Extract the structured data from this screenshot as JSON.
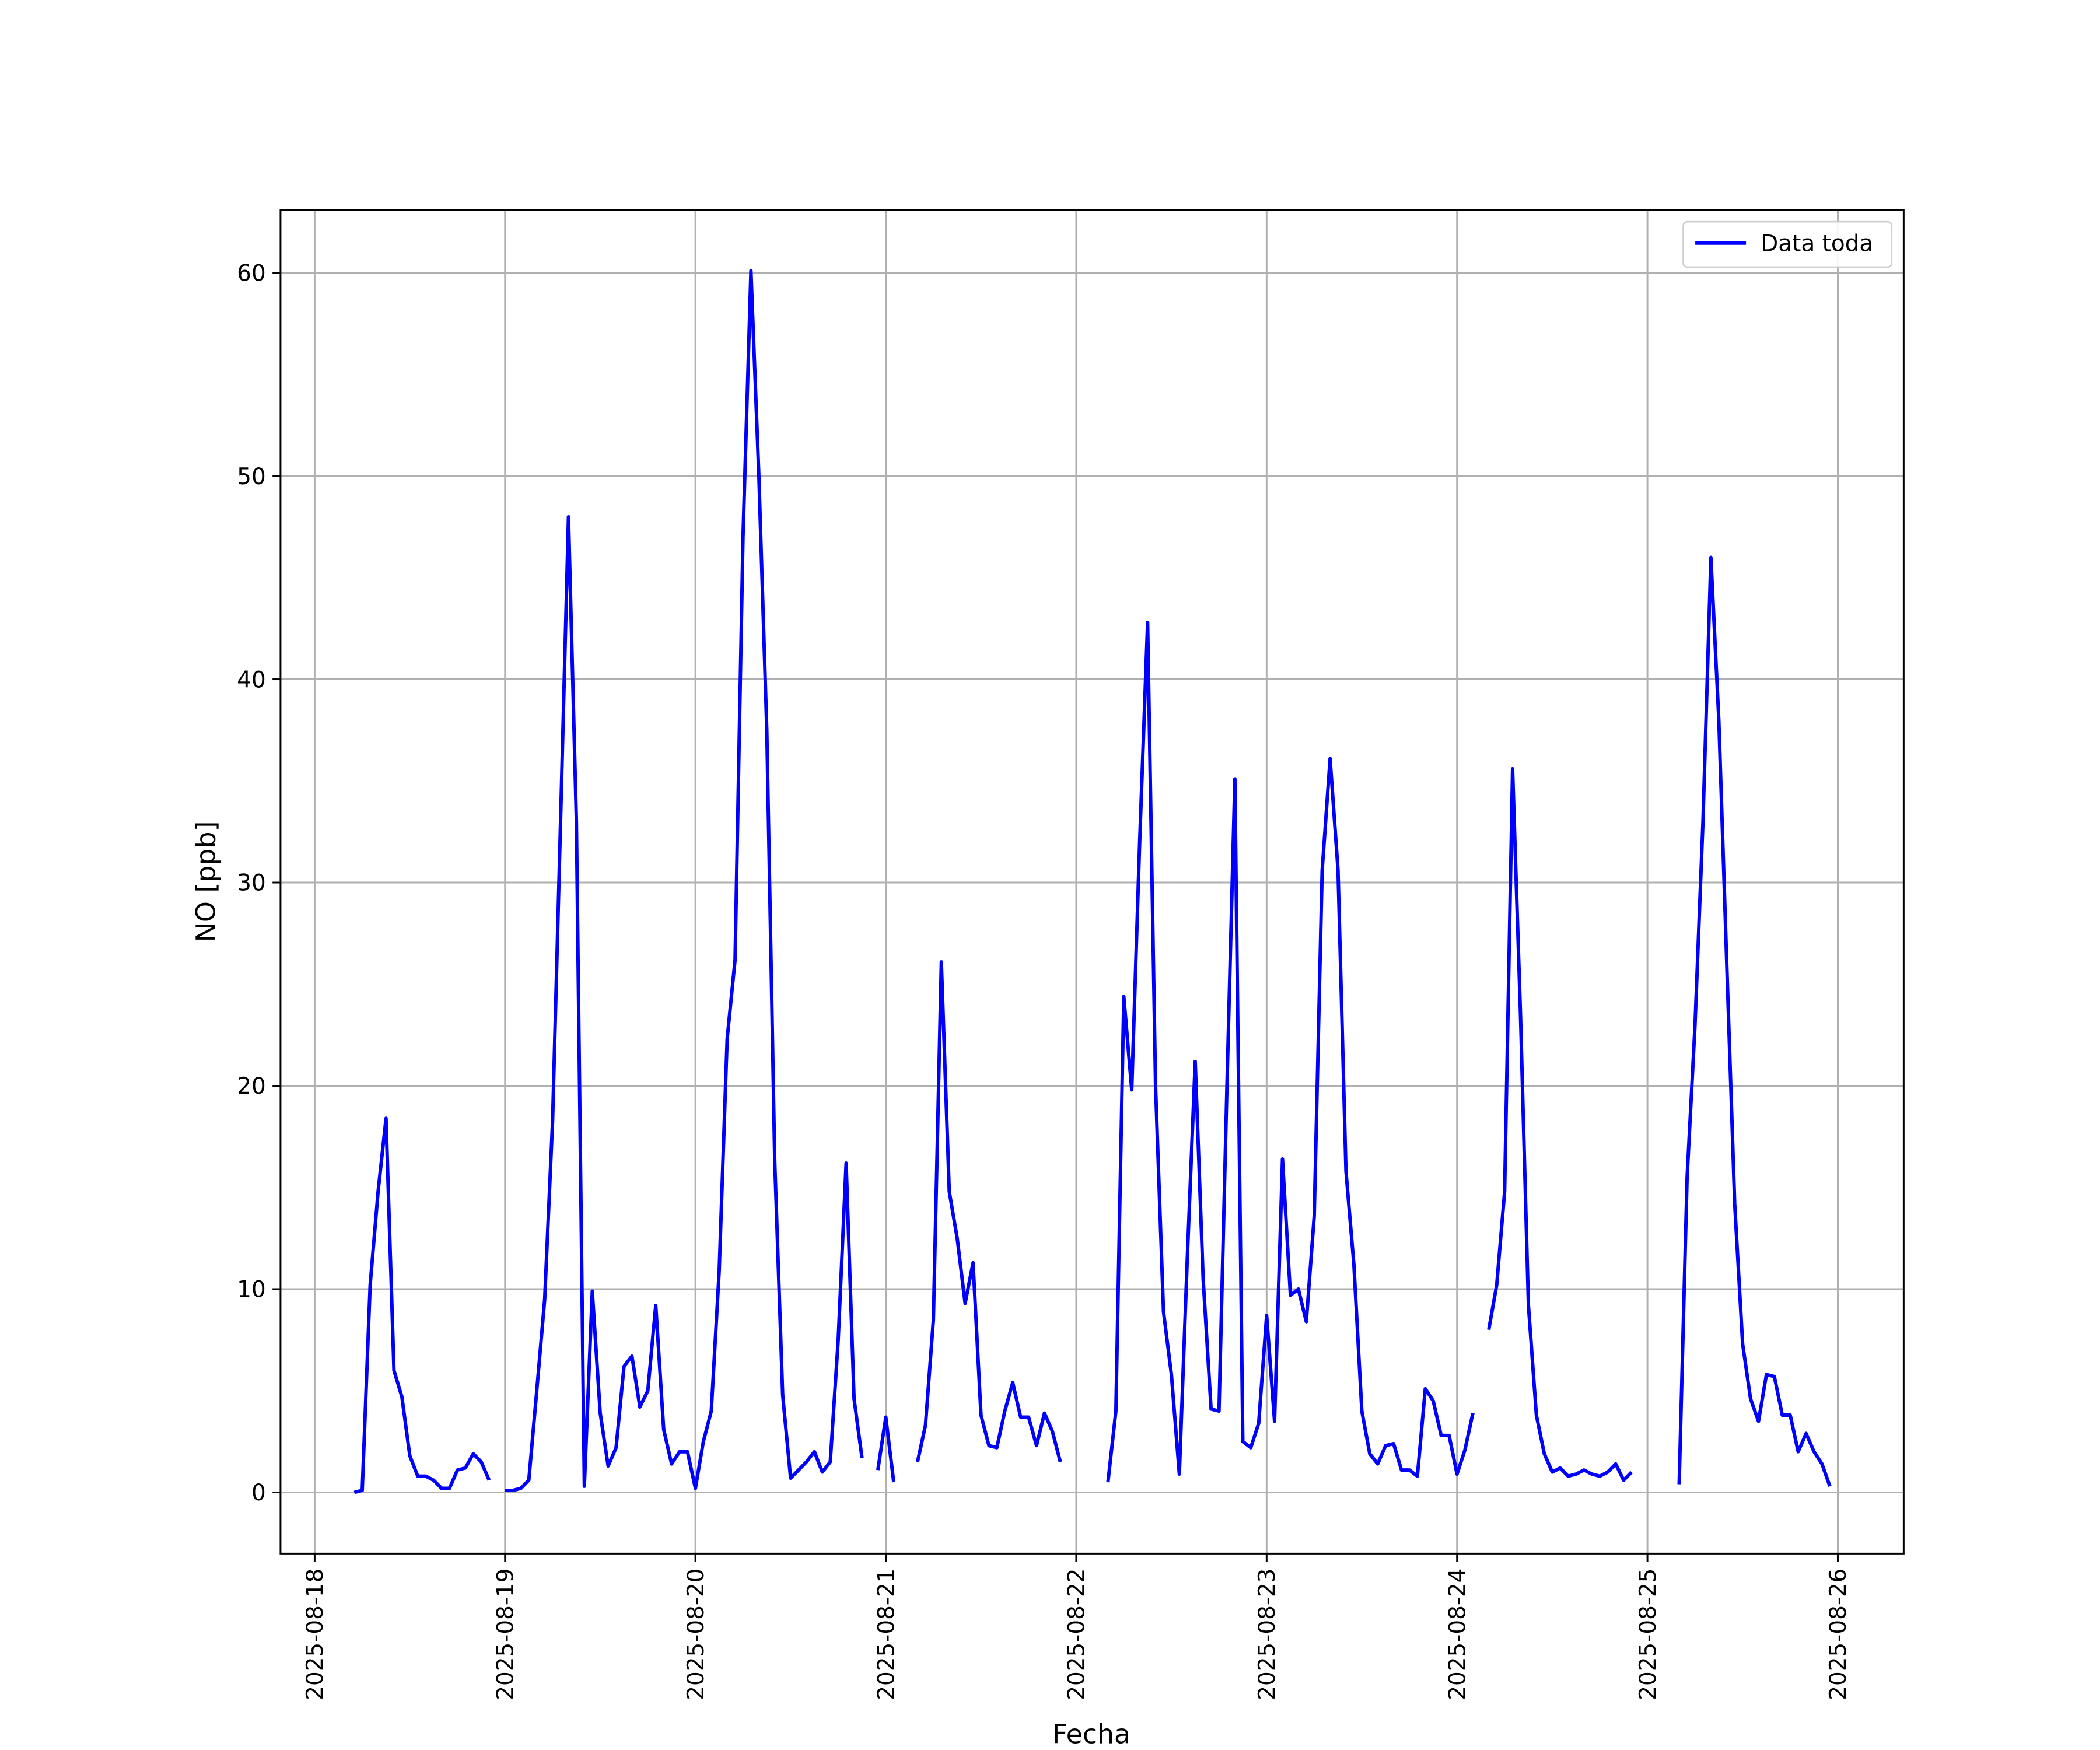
{
  "chart_data": {
    "type": "line",
    "x_label": "Fecha",
    "y_label": "NO [ppb]",
    "x": [
      "2025-08-18T05:00",
      "2025-08-18T06:00",
      "2025-08-18T07:00",
      "2025-08-18T08:00",
      "2025-08-18T09:00",
      "2025-08-18T10:00",
      "2025-08-18T11:00",
      "2025-08-18T12:00",
      "2025-08-18T13:00",
      "2025-08-18T14:00",
      "2025-08-18T15:00",
      "2025-08-18T16:00",
      "2025-08-18T17:00",
      "2025-08-18T18:00",
      "2025-08-18T19:00",
      "2025-08-18T20:00",
      "2025-08-18T21:00",
      "2025-08-18T22:00",
      "2025-08-18T23:00",
      "2025-08-19T00:00",
      "2025-08-19T01:00",
      "2025-08-19T02:00",
      "2025-08-19T03:00",
      "2025-08-19T04:00",
      "2025-08-19T05:00",
      "2025-08-19T06:00",
      "2025-08-19T07:00",
      "2025-08-19T08:00",
      "2025-08-19T09:00",
      "2025-08-19T10:00",
      "2025-08-19T11:00",
      "2025-08-19T12:00",
      "2025-08-19T13:00",
      "2025-08-19T14:00",
      "2025-08-19T15:00",
      "2025-08-19T16:00",
      "2025-08-19T17:00",
      "2025-08-19T18:00",
      "2025-08-19T19:00",
      "2025-08-19T20:00",
      "2025-08-19T21:00",
      "2025-08-19T22:00",
      "2025-08-19T23:00",
      "2025-08-20T00:00",
      "2025-08-20T01:00",
      "2025-08-20T02:00",
      "2025-08-20T03:00",
      "2025-08-20T04:00",
      "2025-08-20T05:00",
      "2025-08-20T06:00",
      "2025-08-20T07:00",
      "2025-08-20T08:00",
      "2025-08-20T09:00",
      "2025-08-20T10:00",
      "2025-08-20T11:00",
      "2025-08-20T12:00",
      "2025-08-20T13:00",
      "2025-08-20T14:00",
      "2025-08-20T15:00",
      "2025-08-20T16:00",
      "2025-08-20T17:00",
      "2025-08-20T18:00",
      "2025-08-20T19:00",
      "2025-08-20T20:00",
      "2025-08-20T21:00",
      "2025-08-20T22:00",
      "2025-08-20T23:00",
      "2025-08-21T00:00",
      "2025-08-21T01:00",
      "2025-08-21T02:00",
      "2025-08-21T03:00",
      "2025-08-21T04:00",
      "2025-08-21T05:00",
      "2025-08-21T06:00",
      "2025-08-21T07:00",
      "2025-08-21T08:00",
      "2025-08-21T09:00",
      "2025-08-21T10:00",
      "2025-08-21T11:00",
      "2025-08-21T12:00",
      "2025-08-21T13:00",
      "2025-08-21T14:00",
      "2025-08-21T15:00",
      "2025-08-21T16:00",
      "2025-08-21T17:00",
      "2025-08-21T18:00",
      "2025-08-21T19:00",
      "2025-08-21T20:00",
      "2025-08-21T21:00",
      "2025-08-21T22:00",
      "2025-08-21T23:00",
      "2025-08-22T00:00",
      "2025-08-22T01:00",
      "2025-08-22T02:00",
      "2025-08-22T03:00",
      "2025-08-22T04:00",
      "2025-08-22T05:00",
      "2025-08-22T06:00",
      "2025-08-22T07:00",
      "2025-08-22T08:00",
      "2025-08-22T09:00",
      "2025-08-22T10:00",
      "2025-08-22T11:00",
      "2025-08-22T12:00",
      "2025-08-22T13:00",
      "2025-08-22T14:00",
      "2025-08-22T15:00",
      "2025-08-22T16:00",
      "2025-08-22T17:00",
      "2025-08-22T18:00",
      "2025-08-22T19:00",
      "2025-08-22T20:00",
      "2025-08-22T21:00",
      "2025-08-22T22:00",
      "2025-08-22T23:00",
      "2025-08-23T00:00",
      "2025-08-23T01:00",
      "2025-08-23T02:00",
      "2025-08-23T03:00",
      "2025-08-23T04:00",
      "2025-08-23T05:00",
      "2025-08-23T06:00",
      "2025-08-23T07:00",
      "2025-08-23T08:00",
      "2025-08-23T09:00",
      "2025-08-23T10:00",
      "2025-08-23T11:00",
      "2025-08-23T12:00",
      "2025-08-23T13:00",
      "2025-08-23T14:00",
      "2025-08-23T15:00",
      "2025-08-23T16:00",
      "2025-08-23T17:00",
      "2025-08-23T18:00",
      "2025-08-23T19:00",
      "2025-08-23T20:00",
      "2025-08-23T21:00",
      "2025-08-23T22:00",
      "2025-08-23T23:00",
      "2025-08-24T00:00",
      "2025-08-24T01:00",
      "2025-08-24T02:00",
      "2025-08-24T03:00",
      "2025-08-24T04:00",
      "2025-08-24T05:00",
      "2025-08-24T06:00",
      "2025-08-24T07:00",
      "2025-08-24T08:00",
      "2025-08-24T09:00",
      "2025-08-24T10:00",
      "2025-08-24T11:00",
      "2025-08-24T12:00",
      "2025-08-24T13:00",
      "2025-08-24T14:00",
      "2025-08-24T15:00",
      "2025-08-24T16:00",
      "2025-08-24T17:00",
      "2025-08-24T18:00",
      "2025-08-24T19:00",
      "2025-08-24T20:00",
      "2025-08-24T21:00",
      "2025-08-24T22:00",
      "2025-08-24T23:00",
      "2025-08-25T00:00",
      "2025-08-25T01:00",
      "2025-08-25T02:00",
      "2025-08-25T03:00",
      "2025-08-25T04:00",
      "2025-08-25T05:00",
      "2025-08-25T06:00",
      "2025-08-25T07:00",
      "2025-08-25T08:00",
      "2025-08-25T09:00",
      "2025-08-25T10:00",
      "2025-08-25T11:00",
      "2025-08-25T12:00",
      "2025-08-25T13:00",
      "2025-08-25T14:00",
      "2025-08-25T15:00",
      "2025-08-25T16:00",
      "2025-08-25T17:00",
      "2025-08-25T18:00",
      "2025-08-25T19:00",
      "2025-08-25T20:00",
      "2025-08-25T21:00",
      "2025-08-25T22:00",
      "2025-08-25T23:00"
    ],
    "series": [
      {
        "name": "Data toda",
        "color": "#0000ff",
        "values": [
          0,
          0.1,
          10.2,
          14.8,
          18.4,
          6.0,
          4.7,
          1.8,
          0.8,
          0.8,
          0.6,
          0.2,
          0.2,
          1.1,
          1.2,
          1.9,
          1.5,
          0.6,
          null,
          0.1,
          0.1,
          0.2,
          0.6,
          5.0,
          9.5,
          18.3,
          33,
          48,
          33,
          0.3,
          9.9,
          3.9,
          1.3,
          2.2,
          6.2,
          6.7,
          4.2,
          5.0,
          9.2,
          3.1,
          1.4,
          2.0,
          2.0,
          0.2,
          2.5,
          4.0,
          10.9,
          22.3,
          26.2,
          47,
          60.1,
          50,
          37.5,
          16.3,
          4.8,
          0.7,
          1.1,
          1.5,
          2.0,
          1.0,
          1.5,
          7.5,
          16.2,
          4.6,
          1.7,
          null,
          1.1,
          3.7,
          0.5,
          null,
          null,
          1.5,
          3.3,
          8.5,
          26.1,
          14.8,
          12.5,
          9.3,
          11.3,
          3.8,
          2.3,
          2.2,
          4.0,
          5.4,
          3.7,
          3.7,
          2.3,
          3.9,
          3.0,
          1.5,
          null,
          null,
          null,
          null,
          null,
          0.5,
          4.0,
          24.4,
          19.8,
          32,
          42.8,
          20,
          8.9,
          5.8,
          0.9,
          11.5,
          21.2,
          10.5,
          4.1,
          4.0,
          20,
          35.1,
          2.5,
          2.2,
          3.4,
          8.7,
          3.5,
          16.4,
          9.7,
          10.0,
          8.4,
          13.6,
          30.6,
          36.1,
          30.6,
          15.8,
          11.2,
          4.0,
          1.9,
          1.4,
          2.3,
          2.4,
          1.1,
          1.1,
          0.8,
          5.1,
          4.5,
          2.8,
          2.8,
          0.9,
          2.1,
          3.9,
          null,
          8.0,
          10.2,
          14.8,
          35.6,
          23.5,
          9.2,
          3.8,
          1.9,
          1.0,
          1.2,
          0.8,
          0.9,
          1.1,
          0.9,
          0.8,
          1.0,
          1.4,
          0.6,
          1.0,
          null,
          null,
          null,
          null,
          null,
          0.4,
          15.5,
          23,
          33,
          46,
          38,
          26,
          14.2,
          7.3,
          4.6,
          3.5,
          5.8,
          5.7,
          3.8,
          3.8,
          2.0,
          2.9,
          2.0,
          1.4,
          0.3
        ]
      }
    ],
    "xlim": [
      "2025-08-17T19:42",
      "2025-08-26T08:18"
    ],
    "xticks": [
      "2025-08-18",
      "2025-08-19",
      "2025-08-20",
      "2025-08-21",
      "2025-08-22",
      "2025-08-23",
      "2025-08-24",
      "2025-08-25",
      "2025-08-26"
    ],
    "ylim": [
      -3.01,
      63.1
    ],
    "yticks": [
      0,
      10,
      20,
      30,
      40,
      50,
      60
    ],
    "grid": true,
    "legend": "upper right"
  }
}
